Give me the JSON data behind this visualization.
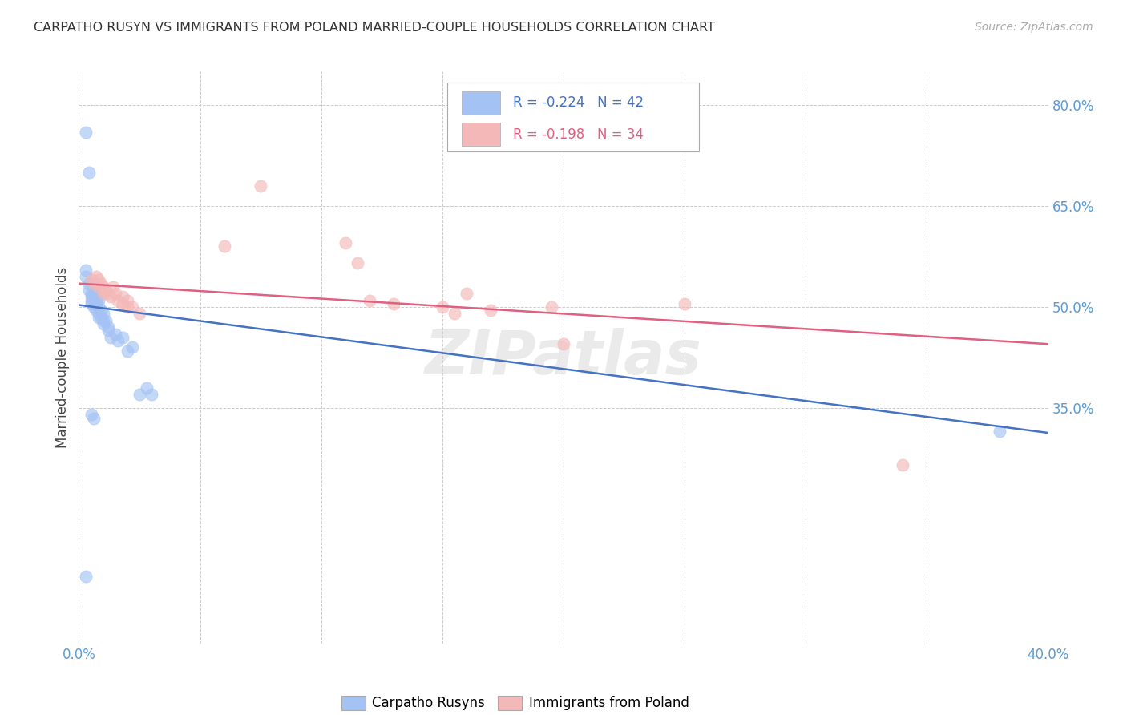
{
  "title": "CARPATHO RUSYN VS IMMIGRANTS FROM POLAND MARRIED-COUPLE HOUSEHOLDS CORRELATION CHART",
  "source": "Source: ZipAtlas.com",
  "ylabel": "Married-couple Households",
  "xlim": [
    0.0,
    0.4
  ],
  "ylim": [
    0.0,
    0.85
  ],
  "yticks": [
    0.35,
    0.5,
    0.65,
    0.8
  ],
  "ytick_labels": [
    "35.0%",
    "50.0%",
    "65.0%",
    "80.0%"
  ],
  "xticks": [
    0.0,
    0.05,
    0.1,
    0.15,
    0.2,
    0.25,
    0.3,
    0.35,
    0.4
  ],
  "xtick_labels": [
    "0.0%",
    "",
    "",
    "",
    "",
    "",
    "",
    "",
    "40.0%"
  ],
  "legend_label1": "Carpatho Rusyns",
  "legend_label2": "Immigrants from Poland",
  "r1": "-0.224",
  "n1": "42",
  "r2": "-0.198",
  "n2": "34",
  "blue_color": "#a4c2f4",
  "pink_color": "#f4b8b8",
  "blue_line_color": "#4472c4",
  "pink_line_color": "#e06080",
  "watermark": "ZIPatlas",
  "blue_x": [
    0.003,
    0.003,
    0.004,
    0.004,
    0.005,
    0.005,
    0.005,
    0.005,
    0.006,
    0.006,
    0.006,
    0.007,
    0.007,
    0.007,
    0.007,
    0.008,
    0.008,
    0.008,
    0.008,
    0.009,
    0.009,
    0.01,
    0.01,
    0.01,
    0.011,
    0.012,
    0.012,
    0.013,
    0.015,
    0.016,
    0.018,
    0.02,
    0.022,
    0.025,
    0.028,
    0.03,
    0.003,
    0.004,
    0.005,
    0.006,
    0.38,
    0.003
  ],
  "blue_y": [
    0.555,
    0.545,
    0.535,
    0.525,
    0.52,
    0.515,
    0.51,
    0.505,
    0.53,
    0.52,
    0.5,
    0.515,
    0.51,
    0.505,
    0.495,
    0.51,
    0.5,
    0.49,
    0.485,
    0.495,
    0.485,
    0.49,
    0.48,
    0.475,
    0.48,
    0.47,
    0.465,
    0.455,
    0.46,
    0.45,
    0.455,
    0.435,
    0.44,
    0.37,
    0.38,
    0.37,
    0.76,
    0.7,
    0.34,
    0.335,
    0.315,
    0.1
  ],
  "pink_x": [
    0.005,
    0.006,
    0.007,
    0.008,
    0.008,
    0.009,
    0.01,
    0.01,
    0.011,
    0.012,
    0.013,
    0.014,
    0.015,
    0.016,
    0.018,
    0.018,
    0.02,
    0.02,
    0.022,
    0.025,
    0.06,
    0.075,
    0.11,
    0.115,
    0.12,
    0.13,
    0.15,
    0.155,
    0.16,
    0.17,
    0.195,
    0.2,
    0.25,
    0.34
  ],
  "pink_y": [
    0.54,
    0.535,
    0.545,
    0.54,
    0.53,
    0.535,
    0.53,
    0.52,
    0.525,
    0.52,
    0.515,
    0.53,
    0.52,
    0.51,
    0.515,
    0.505,
    0.51,
    0.5,
    0.5,
    0.49,
    0.59,
    0.68,
    0.595,
    0.565,
    0.51,
    0.505,
    0.5,
    0.49,
    0.52,
    0.495,
    0.5,
    0.445,
    0.505,
    0.265
  ]
}
